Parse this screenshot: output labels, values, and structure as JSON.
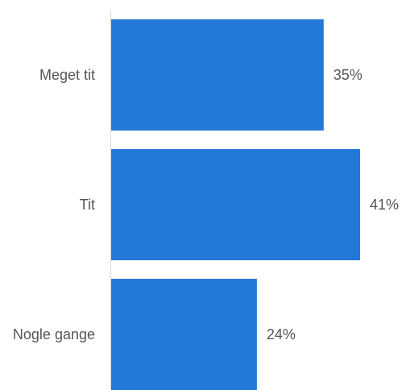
{
  "chart_data": {
    "type": "bar",
    "orientation": "horizontal",
    "categories": [
      "Meget tit",
      "Tit",
      "Nogle gange"
    ],
    "values": [
      35,
      41,
      24
    ],
    "value_labels": [
      "35%",
      "41%",
      "24%"
    ],
    "unit": "%",
    "title": "",
    "xlabel": "",
    "ylabel": "",
    "xlim": [
      0,
      41
    ],
    "grid": false,
    "legend": "none",
    "colors": {
      "bar": "#2479d8",
      "axis": "#d9d9d9",
      "text": "#555555"
    }
  }
}
